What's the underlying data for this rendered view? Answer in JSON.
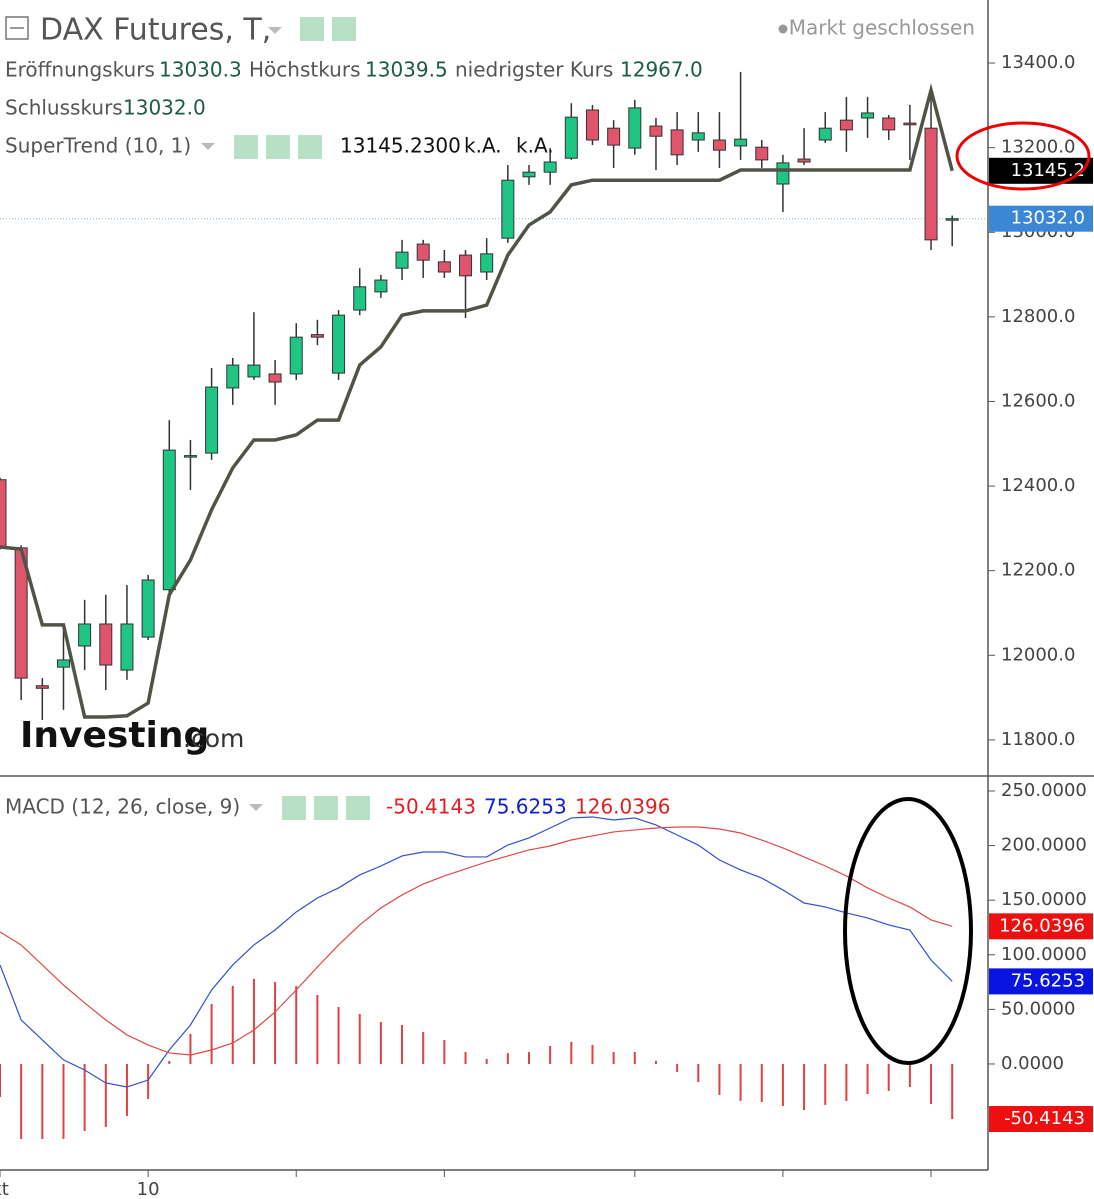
{
  "header": {
    "title": "DAX Futures, T,",
    "status": "Markt geschlossen",
    "ohlc_names": {
      "open": "Eröffnungskurs",
      "high": "Höchstkurs",
      "low": "niedrigster Kurs",
      "close": "Schlusskurs"
    },
    "watermark": [
      "Investing",
      ".com"
    ]
  },
  "chart_data": [
    {
      "type": "candlestick",
      "categories": [
        "kt",
        null,
        null,
        null,
        null,
        null,
        null,
        "10",
        null,
        null,
        null,
        null,
        null,
        null,
        null,
        null,
        null,
        null,
        null,
        null,
        null,
        null,
        null,
        null,
        null,
        null,
        null,
        null,
        null,
        null,
        null,
        null,
        null,
        null,
        null,
        null,
        null,
        null,
        null,
        null,
        null,
        null,
        null,
        null,
        null,
        null
      ],
      "open": [
        12415,
        12254,
        11928,
        11972,
        12022,
        12074,
        11965,
        12043,
        12155,
        12470,
        12478,
        12632,
        12658,
        12665,
        12665,
        12758,
        12667,
        12816,
        12859,
        12915,
        12972,
        12930,
        12946,
        12906,
        12986,
        13131,
        13142,
        13175,
        13289,
        13246,
        13199,
        13251,
        13242,
        13218,
        13218,
        13204,
        13201,
        13114,
        13173,
        13218,
        13265,
        13270,
        13270,
        13258,
        13246,
        13030.3
      ],
      "high": [
        12420,
        12260,
        11946,
        12060,
        12131,
        12143,
        12166,
        12190,
        12556,
        12509,
        12679,
        12703,
        12811,
        12698,
        12785,
        12793,
        12816,
        12915,
        12899,
        12982,
        12982,
        12958,
        12958,
        12986,
        13159,
        13159,
        13199,
        13305,
        13301,
        13265,
        13313,
        13270,
        13284,
        13284,
        13284,
        13379,
        13218,
        13183,
        13246,
        13284,
        13320,
        13320,
        13277,
        13301,
        13324,
        13039.5
      ],
      "low": [
        12250,
        11894,
        11847,
        11871,
        11965,
        11918,
        11942,
        12036,
        12131,
        12391,
        12462,
        12592,
        12651,
        12592,
        12651,
        12733,
        12651,
        12804,
        12845,
        12887,
        12892,
        12892,
        12797,
        12887,
        12975,
        13112,
        13112,
        13171,
        13206,
        13152,
        13183,
        13147,
        13159,
        13190,
        13152,
        13171,
        13152,
        13048,
        13159,
        13211,
        13190,
        13223,
        13218,
        13171,
        12958,
        12967
      ],
      "close": [
        12255,
        11946,
        11922,
        11989,
        12074,
        11977,
        12074,
        12178,
        12485,
        12472,
        12634,
        12686,
        12686,
        12646,
        12752,
        12752,
        12804,
        12871,
        12887,
        12953,
        12934,
        12906,
        12897,
        12949,
        13123,
        13142,
        13166,
        13272,
        13218,
        13206,
        13294,
        13227,
        13183,
        13235,
        13194,
        13220,
        13171,
        13164,
        13166,
        13246,
        13242,
        13282,
        13242,
        13254,
        12982,
        13032
      ],
      "last_labels": {
        "open": "13030.3",
        "high": "13039.5",
        "low": "12967.0",
        "close": "13032.0"
      },
      "up_color": "#1fc585",
      "down_color": "#e0556b",
      "series": [
        {
          "name": "SuperTrend (10, 1)",
          "color": "#4f5446",
          "values": [
            12256,
            12251,
            12072,
            12072,
            11854,
            11854,
            11857,
            11887,
            12143,
            12225,
            12344,
            12443,
            12509,
            12509,
            12521,
            12556,
            12556,
            12686,
            12729,
            12804,
            12814,
            12814,
            12814,
            12828,
            12946,
            13017,
            13048,
            13112,
            13123,
            13123,
            13123,
            13123,
            13123,
            13123,
            13123,
            13147,
            13147,
            13147,
            13147,
            13147,
            13147,
            13147,
            13147,
            13147,
            13336,
            13145.23
          ],
          "last_labels": [
            "13145.2300",
            "13145.2"
          ],
          "extra": [
            "k.A.",
            "k.A."
          ]
        }
      ],
      "ylim": [
        11717,
        13549
      ],
      "yticks": [
        {
          "value": 11800,
          "label": "11800.0"
        },
        {
          "value": 12000,
          "label": "12000.0"
        },
        {
          "value": 12200,
          "label": "12200.0"
        },
        {
          "value": 12400,
          "label": "12400.0"
        },
        {
          "value": 12600,
          "label": "12600.0"
        },
        {
          "value": 12800,
          "label": "12800.0"
        },
        {
          "value": 13000,
          "label": "13000.0"
        },
        {
          "value": 13200,
          "label": "13200.0"
        },
        {
          "value": 13400,
          "label": "13400.0"
        }
      ]
    },
    {
      "type": "macd",
      "title": "MACD (12, 26, close, 9)",
      "series": [
        {
          "kind": "histogram",
          "color": "#e04040",
          "values": [
            -30.2,
            -68.7,
            -68.7,
            -68.6,
            -61.4,
            -57.7,
            -47.7,
            -32.1,
            2.7,
            27.5,
            55.0,
            71.5,
            77.9,
            75.1,
            71.4,
            63.2,
            52.2,
            45.8,
            38.4,
            35.7,
            29.3,
            21.9,
            11.0,
            4.6,
            10.0,
            11.0,
            16.5,
            20.2,
            17.4,
            10.9,
            11.0,
            2.8,
            -7.3,
            -16.5,
            -28.4,
            -33.8,
            -34.8,
            -38.5,
            -42.2,
            -37.5,
            -33.9,
            -27.5,
            -24.7,
            -21.1,
            -36.7,
            -50.4143
          ]
        },
        {
          "kind": "line",
          "color": "#3050d0",
          "badge_color": "#0a14e0",
          "values": [
            90.7,
            40.3,
            22.0,
            3.7,
            -5.5,
            -17.4,
            -21.1,
            -14.7,
            12.8,
            35.7,
            67.8,
            90.7,
            109.0,
            122.7,
            139.2,
            152.0,
            161.2,
            173.1,
            181.3,
            190.5,
            194.1,
            194.1,
            189.6,
            189.6,
            200.5,
            207.0,
            216.1,
            225.3,
            226.2,
            223.4,
            225.3,
            218.9,
            209.7,
            200.5,
            186.8,
            177.7,
            170.3,
            159.3,
            147.4,
            143.8,
            138.3,
            133.7,
            127.3,
            122.7,
            95.2,
            75.6253
          ]
        },
        {
          "kind": "line",
          "color": "#e04848",
          "badge_color": "#ee1010",
          "values": [
            120.9,
            109.0,
            90.7,
            72.3,
            55.9,
            40.3,
            26.6,
            17.4,
            10.1,
            8.2,
            12.8,
            19.2,
            31.1,
            47.6,
            67.8,
            88.8,
            109.0,
            127.3,
            142.9,
            154.8,
            164.8,
            172.2,
            178.6,
            185.0,
            190.5,
            196.0,
            199.6,
            205.1,
            208.8,
            212.5,
            214.3,
            216.1,
            217.0,
            217.0,
            215.2,
            211.5,
            205.1,
            197.8,
            189.6,
            181.3,
            172.2,
            161.2,
            152.0,
            143.8,
            131.9,
            126.0396
          ]
        }
      ],
      "ylim": [
        -97.1,
        262.8
      ],
      "yticks": [
        {
          "value": 0,
          "label": "0.0000"
        },
        {
          "value": 50,
          "label": "50.0000"
        },
        {
          "value": 100,
          "label": "100.0000"
        },
        {
          "value": 150,
          "label": "150.0000"
        },
        {
          "value": 200,
          "label": "200.0000"
        },
        {
          "value": 250,
          "label": "250.0000"
        }
      ]
    }
  ]
}
